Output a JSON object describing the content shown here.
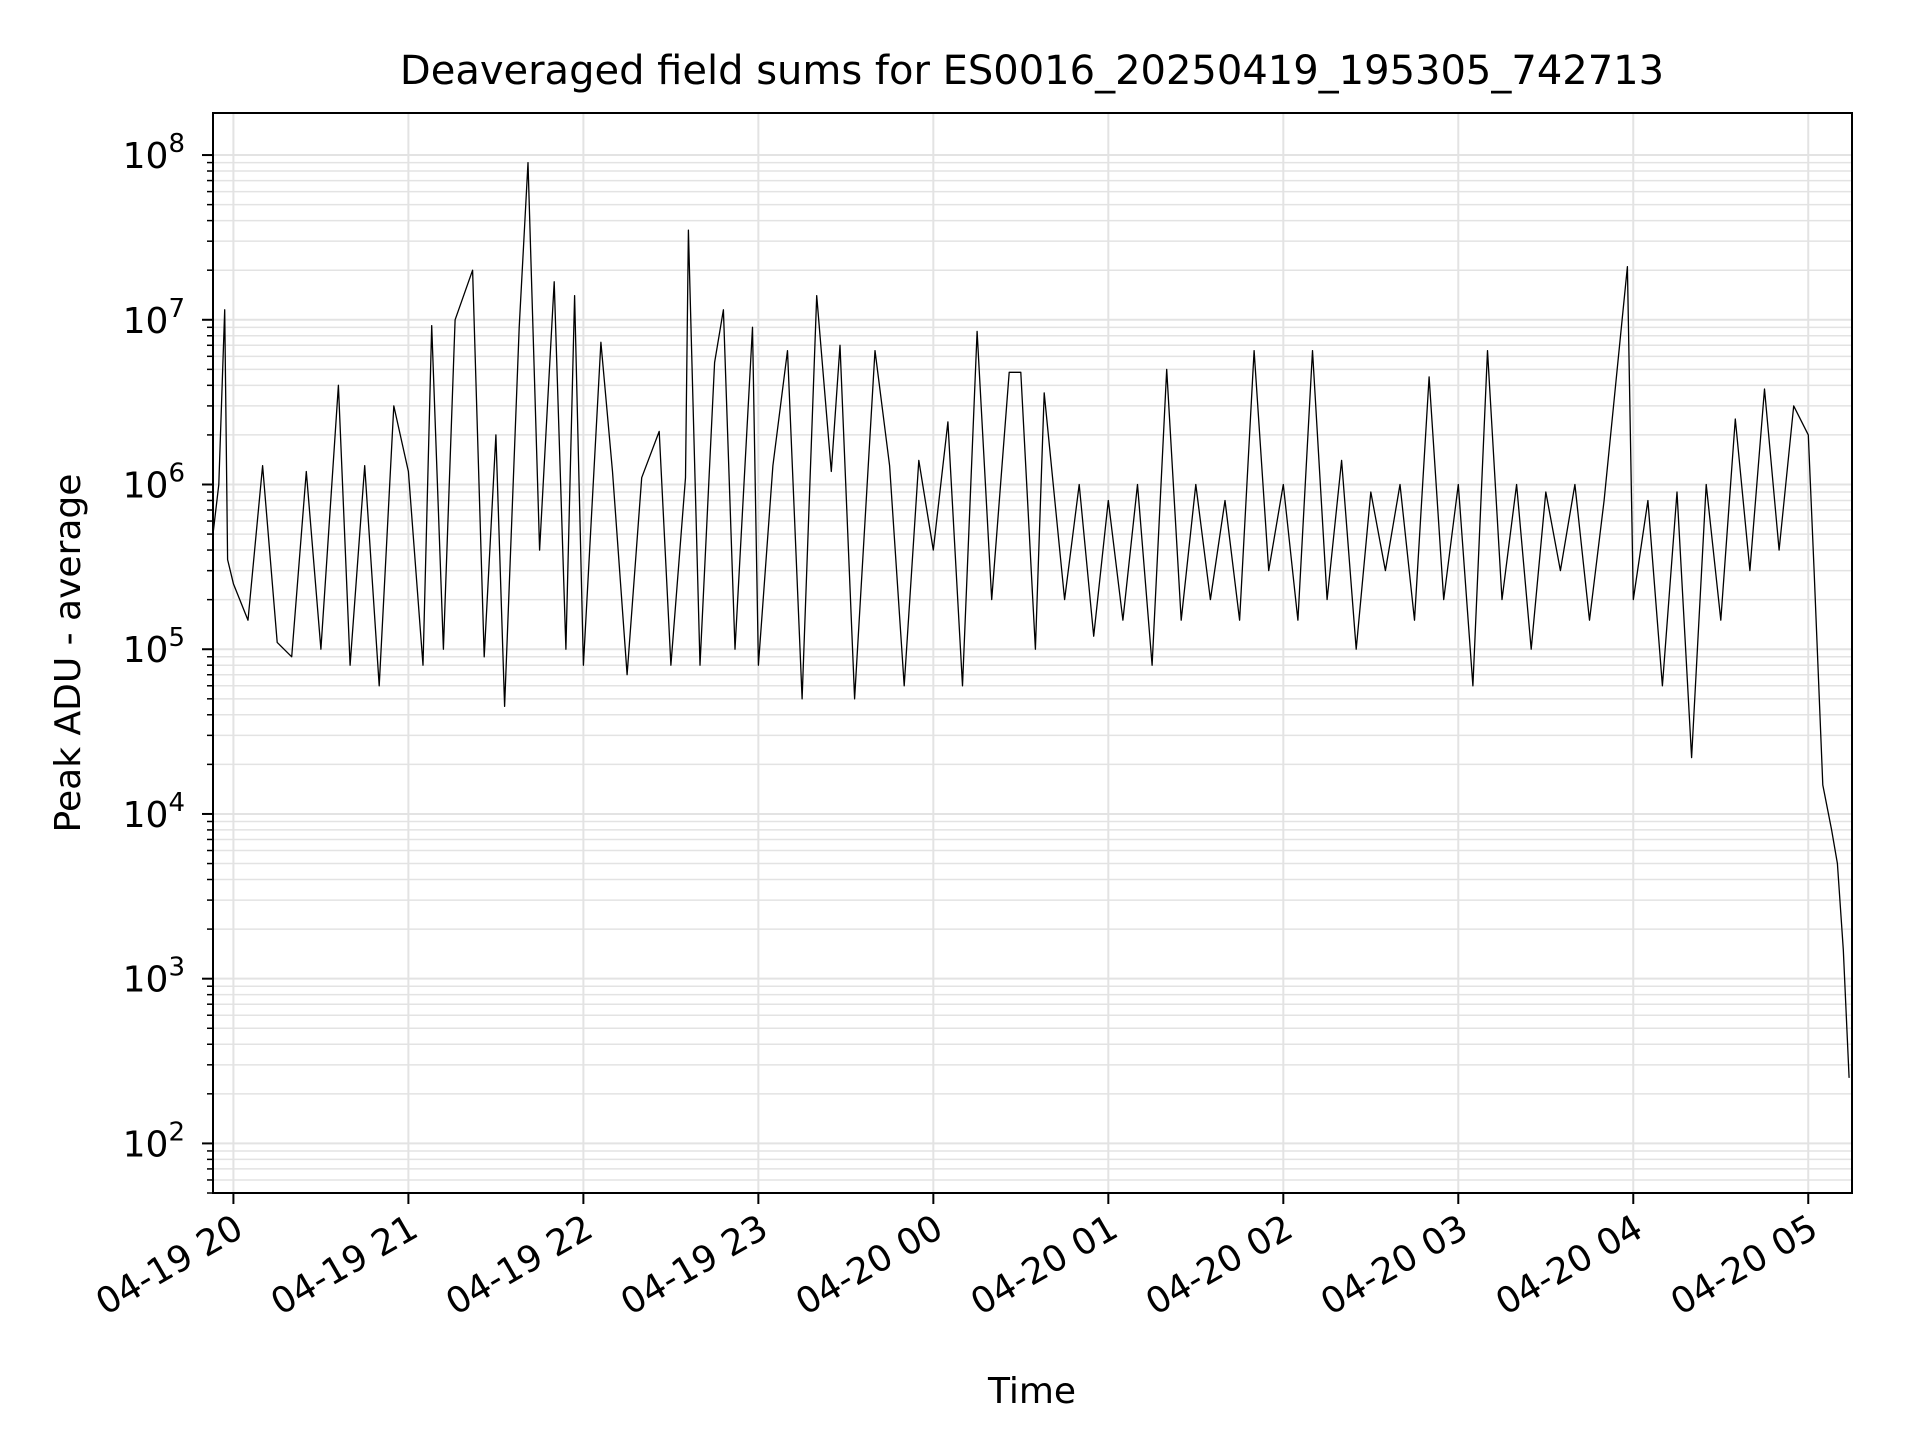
{
  "chart_data": {
    "type": "line",
    "title": "Deaveraged field sums for ES0016_20250419_195305_742713",
    "xlabel": "Time",
    "ylabel": "Peak ADU - average",
    "yscale": "log",
    "ylim": [
      50,
      180000000
    ],
    "xlim": [
      "2025-04-19 19:53",
      "2025-04-20 05:15"
    ],
    "grid": true,
    "line_color": "#000000",
    "grid_color": "#e3e3e3",
    "x_ticks": [
      {
        "value": "2025-04-19 20:00",
        "label": "04-19 20"
      },
      {
        "value": "2025-04-19 21:00",
        "label": "04-19 21"
      },
      {
        "value": "2025-04-19 22:00",
        "label": "04-19 22"
      },
      {
        "value": "2025-04-19 23:00",
        "label": "04-19 23"
      },
      {
        "value": "2025-04-20 00:00",
        "label": "04-20 00"
      },
      {
        "value": "2025-04-20 01:00",
        "label": "04-20 01"
      },
      {
        "value": "2025-04-20 02:00",
        "label": "04-20 02"
      },
      {
        "value": "2025-04-20 03:00",
        "label": "04-20 03"
      },
      {
        "value": "2025-04-20 04:00",
        "label": "04-20 04"
      },
      {
        "value": "2025-04-20 05:00",
        "label": "04-20 05"
      }
    ],
    "y_ticks": [
      {
        "value": 100,
        "base": "10",
        "exp": "2"
      },
      {
        "value": 1000,
        "base": "10",
        "exp": "3"
      },
      {
        "value": 10000,
        "base": "10",
        "exp": "4"
      },
      {
        "value": 100000,
        "base": "10",
        "exp": "5"
      },
      {
        "value": 1000000,
        "base": "10",
        "exp": "6"
      },
      {
        "value": 10000000,
        "base": "10",
        "exp": "7"
      },
      {
        "value": 100000000,
        "base": "10",
        "exp": "8"
      }
    ],
    "series": [
      {
        "points": [
          [
            "2025-04-19 19:53",
            500000
          ],
          [
            "2025-04-19 19:55",
            1000000
          ],
          [
            "2025-04-19 19:57",
            11500000
          ],
          [
            "2025-04-19 19:58",
            350000
          ],
          [
            "2025-04-19 20:00",
            250000
          ],
          [
            "2025-04-19 20:05",
            150000
          ],
          [
            "2025-04-19 20:10",
            1300000
          ],
          [
            "2025-04-19 20:15",
            110000
          ],
          [
            "2025-04-19 20:20",
            90000
          ],
          [
            "2025-04-19 20:25",
            1200000
          ],
          [
            "2025-04-19 20:30",
            100000
          ],
          [
            "2025-04-19 20:36",
            4000000
          ],
          [
            "2025-04-19 20:40",
            80000
          ],
          [
            "2025-04-19 20:45",
            1300000
          ],
          [
            "2025-04-19 20:50",
            60000
          ],
          [
            "2025-04-19 20:55",
            3000000
          ],
          [
            "2025-04-19 21:00",
            1200000
          ],
          [
            "2025-04-19 21:05",
            80000
          ],
          [
            "2025-04-19 21:08",
            9200000
          ],
          [
            "2025-04-19 21:12",
            100000
          ],
          [
            "2025-04-19 21:16",
            10000000
          ],
          [
            "2025-04-19 21:22",
            20000000
          ],
          [
            "2025-04-19 21:26",
            90000
          ],
          [
            "2025-04-19 21:30",
            2000000
          ],
          [
            "2025-04-19 21:33",
            45000
          ],
          [
            "2025-04-19 21:38",
            9000000
          ],
          [
            "2025-04-19 21:41",
            90000000
          ],
          [
            "2025-04-19 21:45",
            400000
          ],
          [
            "2025-04-19 21:50",
            17000000
          ],
          [
            "2025-04-19 21:54",
            100000
          ],
          [
            "2025-04-19 21:57",
            14000000
          ],
          [
            "2025-04-19 22:00",
            80000
          ],
          [
            "2025-04-19 22:06",
            7300000
          ],
          [
            "2025-04-19 22:10",
            1200000
          ],
          [
            "2025-04-19 22:15",
            70000
          ],
          [
            "2025-04-19 22:20",
            1100000
          ],
          [
            "2025-04-19 22:26",
            2100000
          ],
          [
            "2025-04-19 22:30",
            80000
          ],
          [
            "2025-04-19 22:35",
            1100000
          ],
          [
            "2025-04-19 22:36",
            35000000
          ],
          [
            "2025-04-19 22:40",
            80000
          ],
          [
            "2025-04-19 22:45",
            5500000
          ],
          [
            "2025-04-19 22:48",
            11500000
          ],
          [
            "2025-04-19 22:52",
            100000
          ],
          [
            "2025-04-19 22:58",
            9000000
          ],
          [
            "2025-04-19 23:00",
            80000
          ],
          [
            "2025-04-19 23:05",
            1300000
          ],
          [
            "2025-04-19 23:10",
            6500000
          ],
          [
            "2025-04-19 23:15",
            50000
          ],
          [
            "2025-04-19 23:20",
            14000000
          ],
          [
            "2025-04-19 23:25",
            1200000
          ],
          [
            "2025-04-19 23:28",
            7000000
          ],
          [
            "2025-04-19 23:33",
            50000
          ],
          [
            "2025-04-19 23:40",
            6500000
          ],
          [
            "2025-04-19 23:45",
            1300000
          ],
          [
            "2025-04-19 23:50",
            60000
          ],
          [
            "2025-04-19 23:55",
            1400000
          ],
          [
            "2025-04-20 00:00",
            400000
          ],
          [
            "2025-04-20 00:05",
            2400000
          ],
          [
            "2025-04-20 00:10",
            60000
          ],
          [
            "2025-04-20 00:15",
            8500000
          ],
          [
            "2025-04-20 00:20",
            200000
          ],
          [
            "2025-04-20 00:26",
            4800000
          ],
          [
            "2025-04-20 00:30",
            4800000
          ],
          [
            "2025-04-20 00:35",
            100000
          ],
          [
            "2025-04-20 00:38",
            3600000
          ],
          [
            "2025-04-20 00:45",
            200000
          ],
          [
            "2025-04-20 00:50",
            1000000
          ],
          [
            "2025-04-20 00:55",
            120000
          ],
          [
            "2025-04-20 01:00",
            800000
          ],
          [
            "2025-04-20 01:05",
            150000
          ],
          [
            "2025-04-20 01:10",
            1000000
          ],
          [
            "2025-04-20 01:15",
            80000
          ],
          [
            "2025-04-20 01:20",
            5000000
          ],
          [
            "2025-04-20 01:25",
            150000
          ],
          [
            "2025-04-20 01:30",
            1000000
          ],
          [
            "2025-04-20 01:35",
            200000
          ],
          [
            "2025-04-20 01:40",
            800000
          ],
          [
            "2025-04-20 01:45",
            150000
          ],
          [
            "2025-04-20 01:50",
            6500000
          ],
          [
            "2025-04-20 01:55",
            300000
          ],
          [
            "2025-04-20 02:00",
            1000000
          ],
          [
            "2025-04-20 02:05",
            150000
          ],
          [
            "2025-04-20 02:10",
            6500000
          ],
          [
            "2025-04-20 02:15",
            200000
          ],
          [
            "2025-04-20 02:20",
            1400000
          ],
          [
            "2025-04-20 02:25",
            100000
          ],
          [
            "2025-04-20 02:30",
            900000
          ],
          [
            "2025-04-20 02:35",
            300000
          ],
          [
            "2025-04-20 02:40",
            1000000
          ],
          [
            "2025-04-20 02:45",
            150000
          ],
          [
            "2025-04-20 02:50",
            4500000
          ],
          [
            "2025-04-20 02:55",
            200000
          ],
          [
            "2025-04-20 03:00",
            1000000
          ],
          [
            "2025-04-20 03:05",
            60000
          ],
          [
            "2025-04-20 03:10",
            6500000
          ],
          [
            "2025-04-20 03:15",
            200000
          ],
          [
            "2025-04-20 03:20",
            1000000
          ],
          [
            "2025-04-20 03:25",
            100000
          ],
          [
            "2025-04-20 03:30",
            900000
          ],
          [
            "2025-04-20 03:35",
            300000
          ],
          [
            "2025-04-20 03:40",
            1000000
          ],
          [
            "2025-04-20 03:45",
            150000
          ],
          [
            "2025-04-20 03:50",
            800000
          ],
          [
            "2025-04-20 03:58",
            21000000
          ],
          [
            "2025-04-20 04:00",
            200000
          ],
          [
            "2025-04-20 04:05",
            800000
          ],
          [
            "2025-04-20 04:10",
            60000
          ],
          [
            "2025-04-20 04:15",
            900000
          ],
          [
            "2025-04-20 04:20",
            22000
          ],
          [
            "2025-04-20 04:25",
            1000000
          ],
          [
            "2025-04-20 04:30",
            150000
          ],
          [
            "2025-04-20 04:35",
            2500000
          ],
          [
            "2025-04-20 04:40",
            300000
          ],
          [
            "2025-04-20 04:45",
            3800000
          ],
          [
            "2025-04-20 04:50",
            400000
          ],
          [
            "2025-04-20 04:55",
            3000000
          ],
          [
            "2025-04-20 05:00",
            2000000
          ],
          [
            "2025-04-20 05:02",
            300000
          ],
          [
            "2025-04-20 05:05",
            15000
          ],
          [
            "2025-04-20 05:08",
            8000
          ],
          [
            "2025-04-20 05:10",
            5000
          ],
          [
            "2025-04-20 05:12",
            1500
          ],
          [
            "2025-04-20 05:14",
            250
          ]
        ]
      }
    ]
  }
}
